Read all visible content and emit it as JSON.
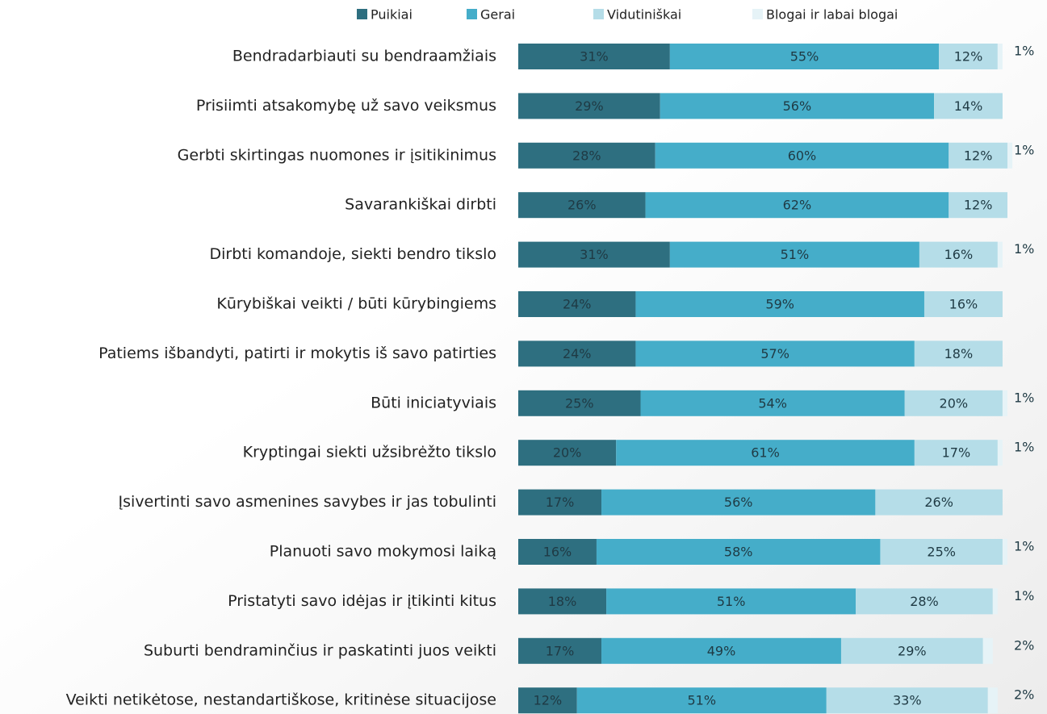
{
  "chart_data": {
    "type": "stacked-barh",
    "categories": [
      "Bendradarbiauti su bendraamžiais",
      "Prisiimti atsakomybę už savo veiksmus",
      "Gerbti skirtingas nuomones ir įsitikinimus",
      "Savarankiškai dirbti",
      "Dirbti komandoje, siekti bendro tikslo",
      "Kūrybiškai veikti / būti kūrybingiems",
      "Patiems išbandyti, patirti ir mokytis iš savo patirties",
      "Būti iniciatyviais",
      "Kryptingai siekti užsibrėžto tikslo",
      "Įsivertinti savo asmenines savybes ir jas tobulinti",
      "Planuoti savo mokymosi laiką",
      "Pristatyti savo idėjas ir įtikinti kitus",
      "Suburti bendraminčius ir paskatinti juos veikti",
      "Veikti netikėtose, nestandartiškose, kritinėse situacijose"
    ],
    "series": [
      {
        "name": "Puikiai",
        "color": "#2e6f80",
        "values": [
          31,
          29,
          28,
          26,
          31,
          24,
          24,
          25,
          20,
          17,
          16,
          18,
          17,
          12
        ],
        "value_labels": [
          "31%",
          "29%",
          "28%",
          "26%",
          "31%",
          "24%",
          "24%",
          "25%",
          "20%",
          "17%",
          "16%",
          "18%",
          "17%",
          "12%"
        ]
      },
      {
        "name": "Gerai",
        "color": "#45adc9",
        "values": [
          55,
          56,
          60,
          62,
          51,
          59,
          57,
          54,
          61,
          56,
          58,
          51,
          49,
          51
        ],
        "value_labels": [
          "55%",
          "56%",
          "60%",
          "62%",
          "51%",
          "59%",
          "57%",
          "54%",
          "61%",
          "56%",
          "58%",
          "51%",
          "49%",
          "51%"
        ]
      },
      {
        "name": "Vidutiniškai",
        "color": "#b5dde8",
        "values": [
          12,
          14,
          12,
          12,
          16,
          16,
          18,
          20,
          17,
          26,
          25,
          28,
          29,
          33
        ],
        "value_labels": [
          "12%",
          "14%",
          "12%",
          "12%",
          "16%",
          "16%",
          "18%",
          "20%",
          "17%",
          "26%",
          "25%",
          "28%",
          "29%",
          "33%"
        ]
      },
      {
        "name": "Blogai ir labai blogai",
        "color": "#e6f3f7",
        "values": [
          1,
          0,
          1,
          0,
          1,
          0,
          0,
          1,
          1,
          0,
          1,
          1,
          2,
          2
        ],
        "value_labels": [
          "1%",
          null,
          "1%",
          null,
          "1%",
          null,
          null,
          "1%",
          "1%",
          null,
          "1%",
          "1%",
          "2%",
          "2%"
        ]
      }
    ],
    "xlim": [
      0,
      100
    ]
  }
}
